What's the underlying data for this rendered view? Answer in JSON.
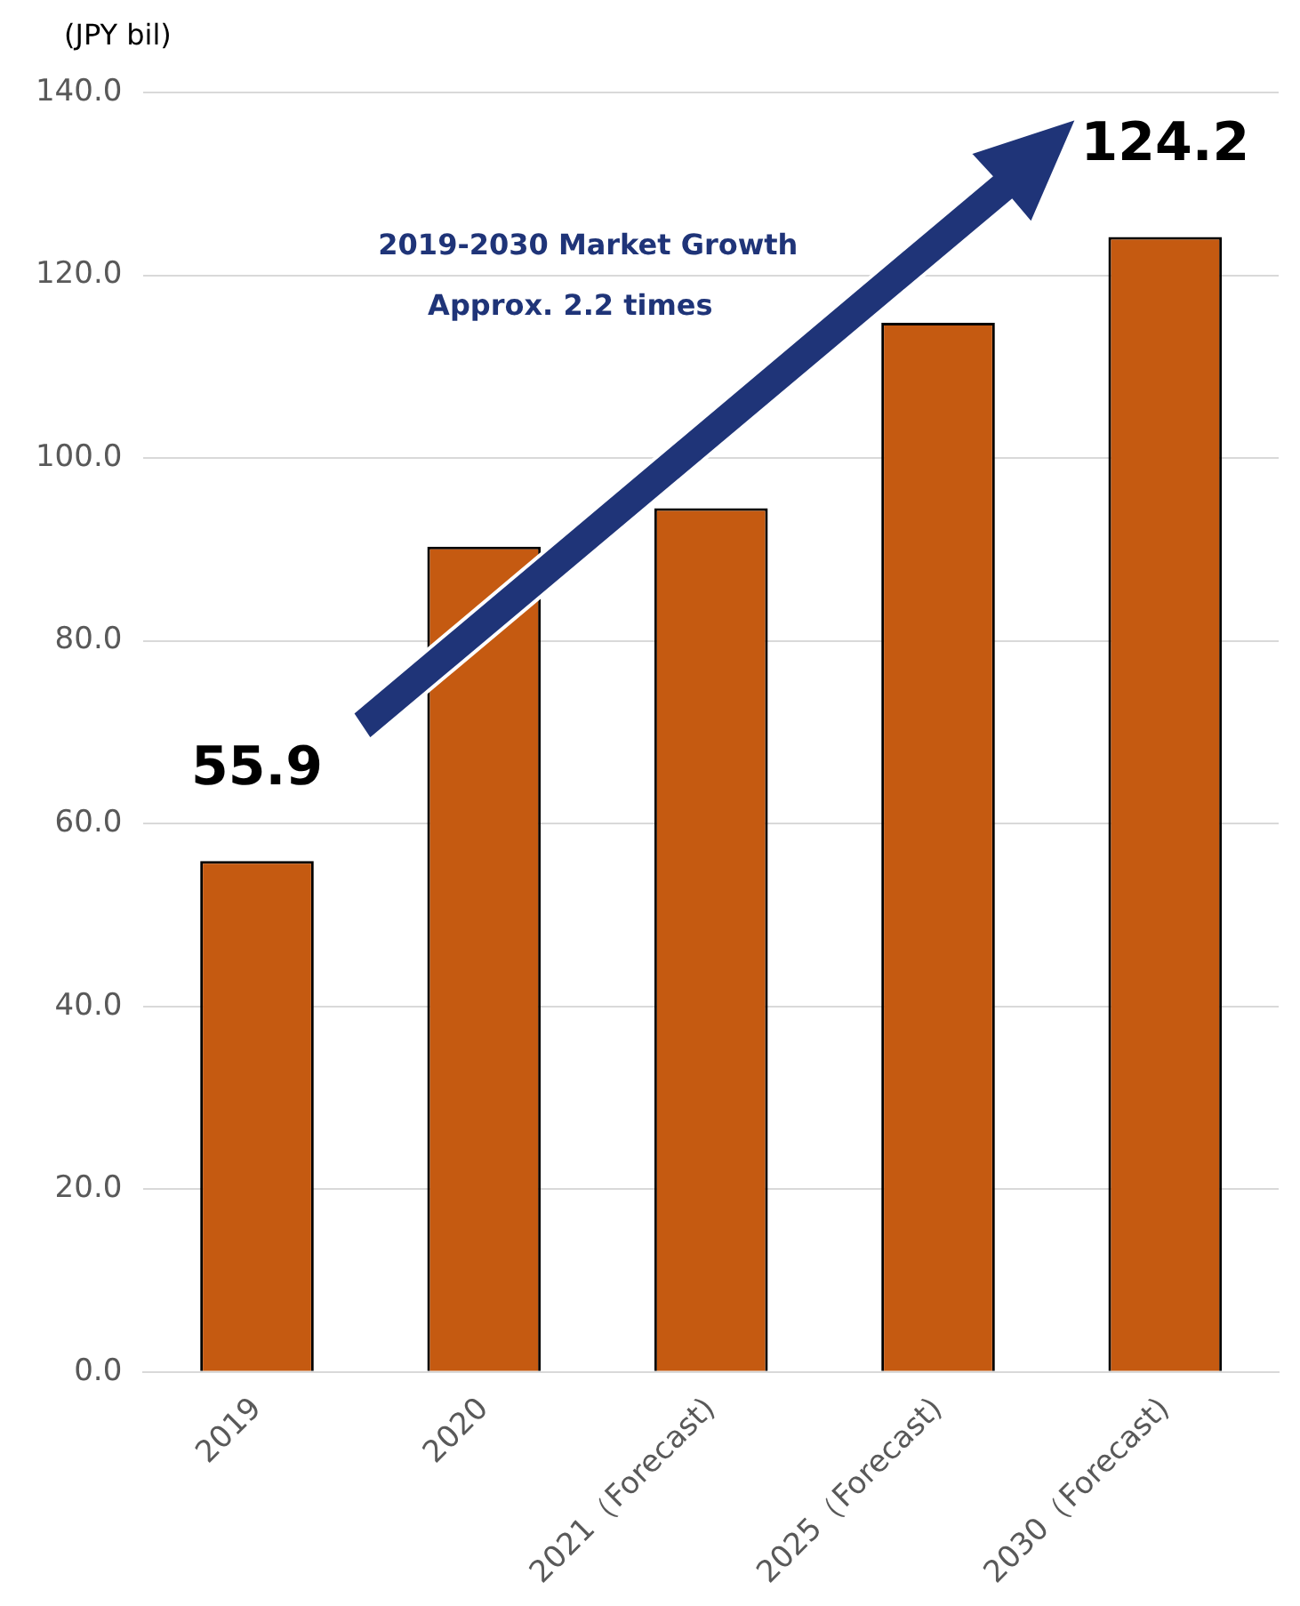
{
  "chart_data": {
    "type": "bar",
    "ylabel": "(JPY bil)",
    "categories": [
      "2019",
      "2020",
      "2021（Forecast)",
      "2025（Forecast)",
      "2030（Forecast)"
    ],
    "values": [
      55.9,
      90.3,
      94.5,
      114.8,
      124.2
    ],
    "color": "#c55a11",
    "value_labels": [
      "55.9",
      null,
      null,
      null,
      "124.2"
    ],
    "annotations": [
      "2019-2030 Market Growth",
      "Approx. 2.2 times"
    ],
    "ylim": [
      0,
      140
    ],
    "yticks": [
      {
        "value": 0,
        "label": "0.0"
      },
      {
        "value": 20,
        "label": "20.0"
      },
      {
        "value": 40,
        "label": "40.0"
      },
      {
        "value": 60,
        "label": "60.0"
      },
      {
        "value": 80,
        "label": "80.0"
      },
      {
        "value": 100,
        "label": "100.0"
      },
      {
        "value": 120,
        "label": "120.0"
      },
      {
        "value": 140,
        "label": "140.0"
      }
    ],
    "grid": "y",
    "legend": false
  }
}
